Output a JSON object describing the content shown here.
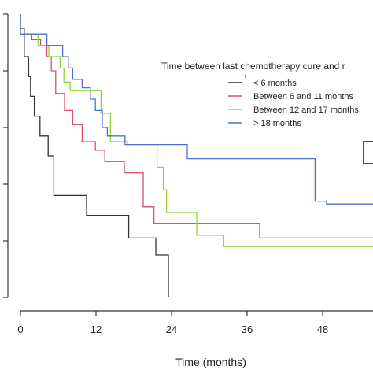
{
  "chart_data": {
    "type": "line",
    "title": "",
    "xlabel": "Time (months)",
    "ylabel": "",
    "xlim": [
      -2,
      56
    ],
    "ylim": [
      0,
      1
    ],
    "xticks": [
      0,
      12,
      24,
      36,
      48
    ],
    "yticks": [
      0,
      0.2,
      0.4,
      0.6,
      0.8,
      1.0
    ],
    "legend": {
      "title": "Time between last chemotherapy cure and r",
      "placement": "center-right"
    },
    "series": [
      {
        "name": "< 6 months",
        "color": "#333333",
        "points": [
          [
            0,
            1.0
          ],
          [
            0,
            0.95
          ],
          [
            0.6,
            0.95
          ],
          [
            0.6,
            0.85
          ],
          [
            1.3,
            0.85
          ],
          [
            1.3,
            0.78
          ],
          [
            1.6,
            0.78
          ],
          [
            1.6,
            0.71
          ],
          [
            2.2,
            0.71
          ],
          [
            2.2,
            0.64
          ],
          [
            3.1,
            0.64
          ],
          [
            3.1,
            0.57
          ],
          [
            4.4,
            0.57
          ],
          [
            4.4,
            0.5
          ],
          [
            5.3,
            0.5
          ],
          [
            5.3,
            0.36
          ],
          [
            10.5,
            0.36
          ],
          [
            10.5,
            0.29
          ],
          [
            17.2,
            0.29
          ],
          [
            17.2,
            0.21
          ],
          [
            21.5,
            0.21
          ],
          [
            21.5,
            0.15
          ],
          [
            23.5,
            0.15
          ],
          [
            23.5,
            0.0
          ]
        ]
      },
      {
        "name": "Between 6 and 11 months",
        "color": "#d94f6a",
        "points": [
          [
            0,
            1.0
          ],
          [
            0,
            0.93
          ],
          [
            1.8,
            0.93
          ],
          [
            1.8,
            0.91
          ],
          [
            3.2,
            0.91
          ],
          [
            3.2,
            0.89
          ],
          [
            4.2,
            0.89
          ],
          [
            4.2,
            0.85
          ],
          [
            4.9,
            0.85
          ],
          [
            4.9,
            0.8
          ],
          [
            5.6,
            0.8
          ],
          [
            5.6,
            0.72
          ],
          [
            7.0,
            0.72
          ],
          [
            7.0,
            0.66
          ],
          [
            8.3,
            0.66
          ],
          [
            8.3,
            0.61
          ],
          [
            9.8,
            0.61
          ],
          [
            9.8,
            0.55
          ],
          [
            11.9,
            0.55
          ],
          [
            11.9,
            0.52
          ],
          [
            13.4,
            0.52
          ],
          [
            13.4,
            0.48
          ],
          [
            16.5,
            0.48
          ],
          [
            16.5,
            0.44
          ],
          [
            19.5,
            0.44
          ],
          [
            19.5,
            0.32
          ],
          [
            21.2,
            0.32
          ],
          [
            21.2,
            0.26
          ],
          [
            38.0,
            0.26
          ],
          [
            38.0,
            0.21
          ],
          [
            56,
            0.21
          ]
        ]
      },
      {
        "name": "Between 12 and 17 months",
        "color": "#8fd63a",
        "points": [
          [
            0,
            1.0
          ],
          [
            0,
            0.93
          ],
          [
            2.8,
            0.93
          ],
          [
            2.8,
            0.89
          ],
          [
            4.5,
            0.89
          ],
          [
            4.5,
            0.85
          ],
          [
            6.3,
            0.85
          ],
          [
            6.3,
            0.81
          ],
          [
            6.9,
            0.81
          ],
          [
            6.9,
            0.76
          ],
          [
            7.9,
            0.76
          ],
          [
            7.9,
            0.73
          ],
          [
            12.8,
            0.73
          ],
          [
            12.8,
            0.65
          ],
          [
            14.3,
            0.65
          ],
          [
            14.3,
            0.55
          ],
          [
            17.0,
            0.55
          ],
          [
            17.0,
            0.54
          ],
          [
            21.7,
            0.54
          ],
          [
            21.7,
            0.46
          ],
          [
            22.7,
            0.46
          ],
          [
            22.7,
            0.38
          ],
          [
            23.2,
            0.38
          ],
          [
            23.2,
            0.3
          ],
          [
            28.0,
            0.3
          ],
          [
            28.0,
            0.22
          ],
          [
            32.3,
            0.22
          ],
          [
            32.3,
            0.18
          ],
          [
            56,
            0.18
          ]
        ]
      },
      {
        "name": "> 18 months",
        "color": "#4f6fd6",
        "points": [
          [
            0,
            1.0
          ],
          [
            0,
            0.93
          ],
          [
            4.2,
            0.93
          ],
          [
            4.2,
            0.89
          ],
          [
            6.7,
            0.89
          ],
          [
            6.7,
            0.85
          ],
          [
            7.6,
            0.85
          ],
          [
            7.6,
            0.81
          ],
          [
            8.3,
            0.81
          ],
          [
            8.3,
            0.77
          ],
          [
            9.8,
            0.77
          ],
          [
            9.8,
            0.74
          ],
          [
            11.1,
            0.74
          ],
          [
            11.1,
            0.7
          ],
          [
            11.9,
            0.7
          ],
          [
            11.9,
            0.66
          ],
          [
            13.0,
            0.66
          ],
          [
            13.0,
            0.6
          ],
          [
            13.8,
            0.6
          ],
          [
            13.8,
            0.57
          ],
          [
            16.6,
            0.57
          ],
          [
            16.6,
            0.54
          ],
          [
            26.5,
            0.54
          ],
          [
            26.5,
            0.49
          ],
          [
            46.8,
            0.49
          ],
          [
            46.8,
            0.34
          ],
          [
            48.6,
            0.34
          ],
          [
            48.6,
            0.33
          ],
          [
            56,
            0.33
          ]
        ]
      }
    ]
  }
}
